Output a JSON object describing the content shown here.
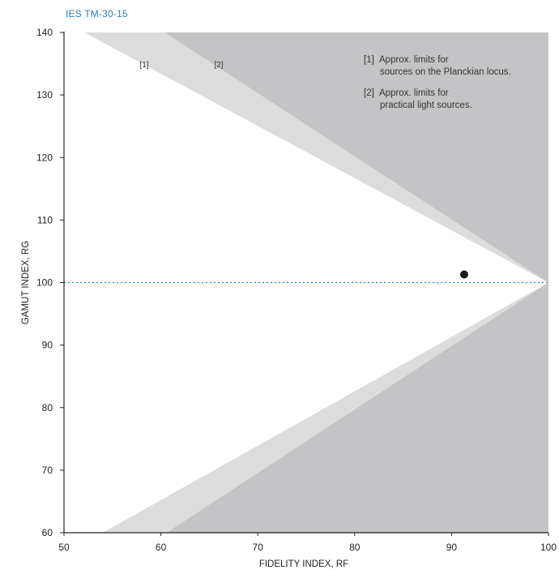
{
  "chart_data": {
    "type": "scatter",
    "title": "IES TM-30-15",
    "xlabel": "FIDELITY INDEX, RF",
    "ylabel": "GAMUT INDEX, RG",
    "xlim": [
      50,
      100
    ],
    "ylim": [
      60,
      140
    ],
    "xticks": [
      50,
      60,
      70,
      80,
      90,
      100
    ],
    "yticks": [
      60,
      70,
      80,
      90,
      100,
      110,
      120,
      130,
      140
    ],
    "grid": false,
    "reference_line": {
      "y": 100,
      "style": "dotted",
      "color": "#2c7fb0"
    },
    "points": [
      {
        "x": 91.3,
        "y": 101.3
      }
    ],
    "regions": [
      {
        "label": "[1]",
        "upper_vertex_x": 52.1,
        "lower_vertex_x": 54.0,
        "color": "#dcdcdd"
      },
      {
        "label": "[2]",
        "upper_vertex_x": 60.4,
        "lower_vertex_x": 60.6,
        "color": "#c4c4c6"
      }
    ],
    "region_labels": [
      "[1]",
      "[2]"
    ],
    "legend": [
      {
        "marker": "[1]",
        "lines": [
          "Approx. limits for",
          "sources on the Planckian locus."
        ]
      },
      {
        "marker": "[2]",
        "lines": [
          "Approx. limits for",
          "practical light sources."
        ]
      }
    ],
    "legend_position": "top-right"
  },
  "colors": {
    "title": "#2c7fb0",
    "reference_line": "#2c7fb0",
    "point": "#1a1a1a",
    "axis": "#222222"
  }
}
